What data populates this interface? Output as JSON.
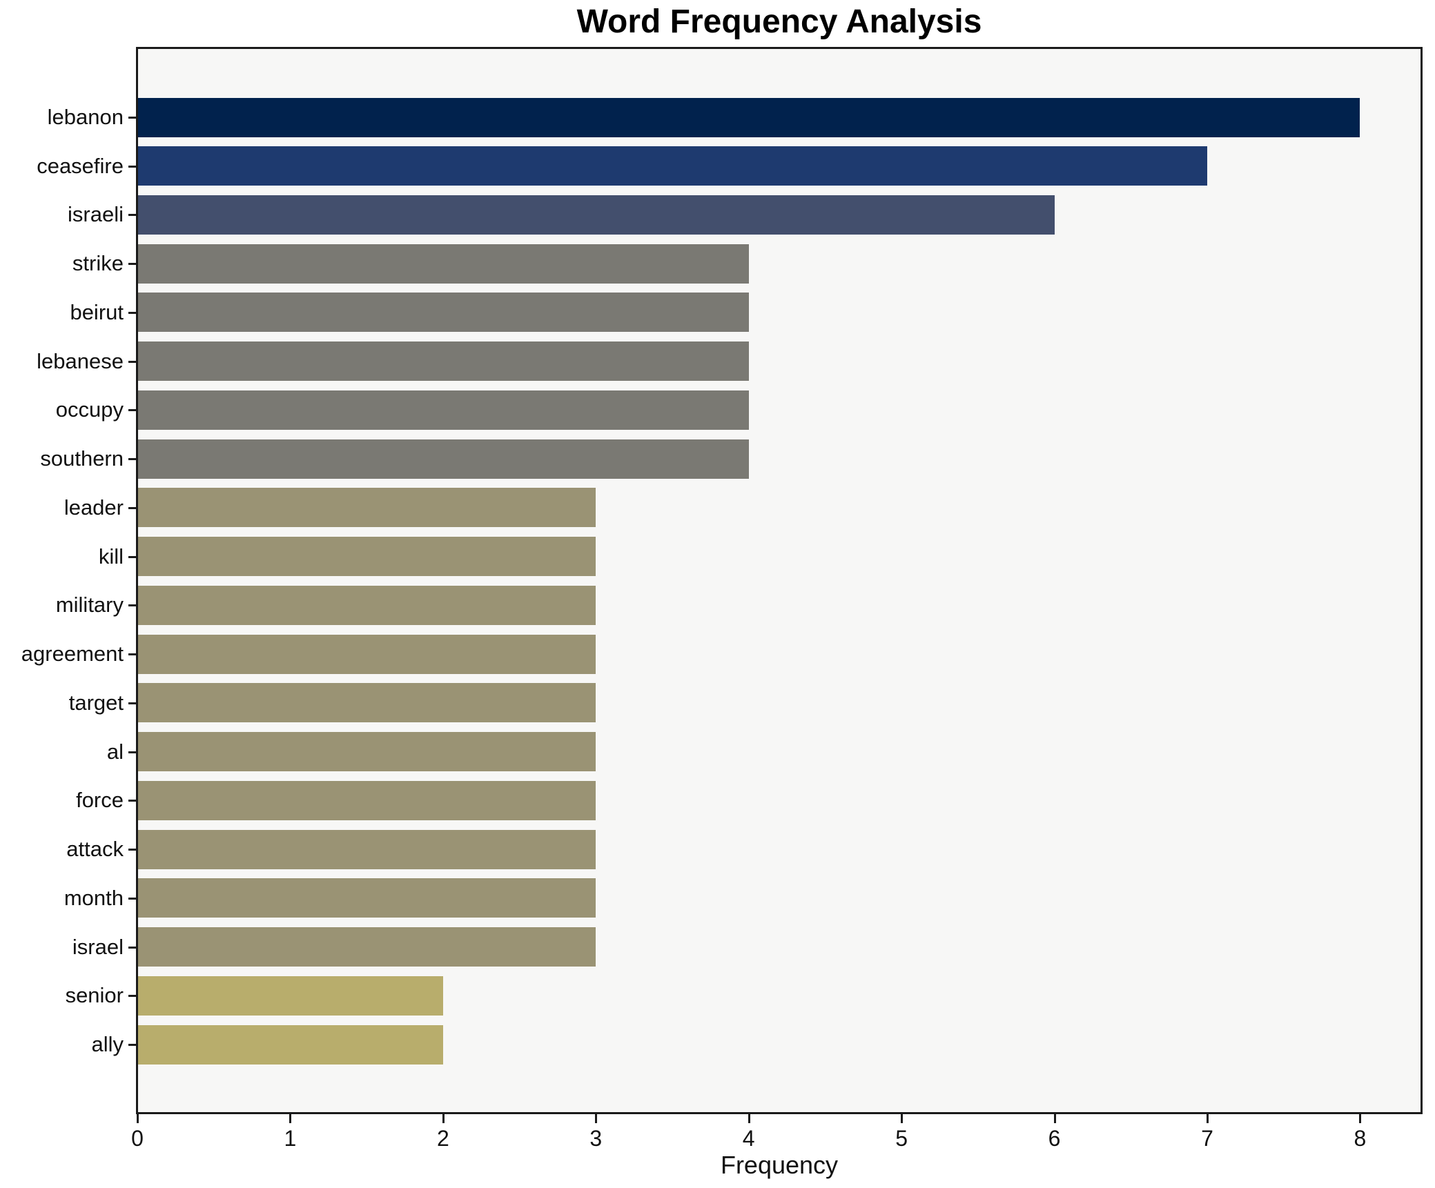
{
  "title": "Word Frequency Analysis",
  "axes": {
    "xlabel": "Frequency",
    "x_ticks": [
      "0",
      "1",
      "2",
      "3",
      "4",
      "5",
      "6",
      "7",
      "8"
    ]
  },
  "colors": {
    "figure_bg": "#ffffff",
    "plot_bg": "#f7f7f6",
    "spine": "#1a1a1a",
    "text": "#111111"
  },
  "chart_data": {
    "type": "bar",
    "orientation": "horizontal",
    "title": "Word Frequency Analysis",
    "xlabel": "Frequency",
    "ylabel": "",
    "xlim": [
      0,
      8.4
    ],
    "grid": false,
    "legend": false,
    "categories": [
      "lebanon",
      "ceasefire",
      "israeli",
      "strike",
      "beirut",
      "lebanese",
      "occupy",
      "southern",
      "leader",
      "kill",
      "military",
      "agreement",
      "target",
      "al",
      "force",
      "attack",
      "month",
      "israel",
      "senior",
      "ally"
    ],
    "values": [
      8,
      7,
      6,
      4,
      4,
      4,
      4,
      4,
      3,
      3,
      3,
      3,
      3,
      3,
      3,
      3,
      3,
      3,
      2,
      2
    ],
    "bar_colors": [
      "#01224d",
      "#1e3a6f",
      "#434f6d",
      "#7a7973",
      "#7a7973",
      "#7a7973",
      "#7a7973",
      "#7a7973",
      "#9a9374",
      "#9a9374",
      "#9a9374",
      "#9a9374",
      "#9a9374",
      "#9a9374",
      "#9a9374",
      "#9a9374",
      "#9a9374",
      "#9a9374",
      "#b8ad6c",
      "#b8ad6c"
    ]
  }
}
